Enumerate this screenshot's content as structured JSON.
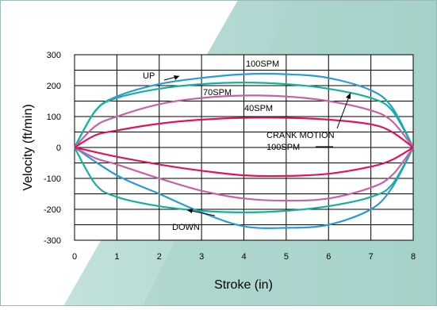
{
  "chart_data": {
    "type": "line",
    "title": "",
    "xlabel": "Stroke (in)",
    "ylabel": "Velocity (ft/min)",
    "xlim": [
      0,
      8
    ],
    "ylim": [
      -300,
      300
    ],
    "x_ticks": [
      "0",
      "1",
      "2",
      "3",
      "4",
      "5",
      "6",
      "7",
      "8"
    ],
    "y_ticks": [
      "300",
      "200",
      "100",
      "0",
      "-100",
      "-200",
      "-300"
    ],
    "grid": true,
    "annotations": {
      "up": "UP",
      "down": "DOWN",
      "spm100": "100SPM",
      "spm70": "70SPM",
      "spm40": "40SPM",
      "crank_motion": "CRANK MOTION",
      "crank_100spm": "100SPM"
    },
    "series": [
      {
        "color": "#2a9bd6",
        "up_x": [
          0,
          0.5,
          1,
          2,
          3,
          4,
          5,
          6,
          7,
          7.5,
          8
        ],
        "up_y": [
          0,
          120,
          165,
          205,
          225,
          237,
          237,
          225,
          185,
          130,
          0
        ],
        "down_x": [
          0,
          1,
          2,
          3,
          4,
          5,
          6,
          7,
          7.5,
          8
        ],
        "down_y": [
          0,
          -90,
          -150,
          -210,
          -255,
          -260,
          -250,
          -200,
          -130,
          0
        ]
      },
      {
        "color": "#15b0a0",
        "up_x": [
          0,
          0.5,
          1,
          2,
          3,
          4,
          5,
          6,
          7,
          7.5,
          8
        ],
        "up_y": [
          0,
          120,
          160,
          190,
          205,
          210,
          205,
          190,
          160,
          120,
          0
        ],
        "down_x": [
          0,
          0.5,
          1,
          2,
          3,
          4,
          5,
          6,
          7,
          7.5,
          8
        ],
        "down_y": [
          0,
          -120,
          -160,
          -190,
          -205,
          -210,
          -205,
          -190,
          -160,
          -120,
          0
        ]
      },
      {
        "color": "#c463a9",
        "up_x": [
          0,
          0.5,
          1,
          2,
          3,
          4,
          5,
          6,
          7,
          7.5,
          8
        ],
        "up_y": [
          0,
          70,
          100,
          140,
          160,
          168,
          165,
          150,
          120,
          85,
          0
        ],
        "down_x": [
          0,
          0.5,
          1,
          2,
          3,
          4,
          5,
          6,
          7,
          7.5,
          8
        ],
        "down_y": [
          0,
          -35,
          -55,
          -100,
          -140,
          -165,
          -172,
          -165,
          -130,
          -90,
          0
        ]
      },
      {
        "color": "#e0145a",
        "up_x": [
          0,
          0.5,
          1,
          2,
          3,
          4,
          5,
          6,
          7,
          7.5,
          8
        ],
        "up_y": [
          0,
          40,
          55,
          77,
          90,
          96,
          96,
          90,
          75,
          50,
          0
        ],
        "down_x": [
          0,
          0.5,
          1,
          2,
          3,
          4,
          5,
          6,
          7,
          7.5,
          8
        ],
        "down_y": [
          0,
          -15,
          -30,
          -55,
          -75,
          -90,
          -92,
          -85,
          -62,
          -40,
          0
        ]
      }
    ]
  }
}
